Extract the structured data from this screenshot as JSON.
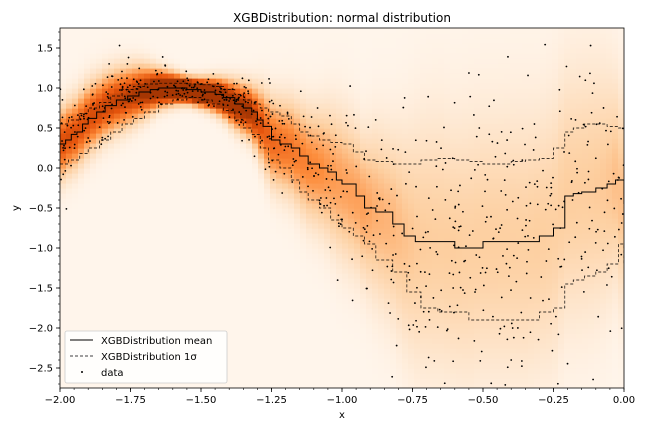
{
  "chart_data": {
    "type": "line",
    "title": "XGBDistribution: normal distribution",
    "xlabel": "x",
    "ylabel": "y",
    "xlim": [
      -2.0,
      0.0
    ],
    "ylim": [
      -2.75,
      1.75
    ],
    "xticks": [
      -2.0,
      -1.75,
      -1.5,
      -1.25,
      -1.0,
      -0.75,
      -0.5,
      -0.25,
      0.0
    ],
    "xtick_labels": [
      "−2.00",
      "−1.75",
      "−1.50",
      "−1.25",
      "−1.00",
      "−0.75",
      "−0.50",
      "−0.25",
      "0.00"
    ],
    "yticks": [
      -2.5,
      -2.0,
      -1.5,
      -1.0,
      -0.5,
      0.0,
      0.5,
      1.0,
      1.5
    ],
    "ytick_labels": [
      "−2.5",
      "−2.0",
      "−1.5",
      "−1.0",
      "−0.5",
      "0.0",
      "0.5",
      "1.0",
      "1.5"
    ],
    "legend_position": "lower-left",
    "background": "density heatmap (Oranges colormap)",
    "series": [
      {
        "name": "XGBDistribution mean",
        "style": "solid",
        "color": "#000000",
        "x": [
          -2.0,
          -1.98,
          -1.96,
          -1.94,
          -1.92,
          -1.9,
          -1.87,
          -1.84,
          -1.8,
          -1.76,
          -1.72,
          -1.68,
          -1.65,
          -1.6,
          -1.55,
          -1.5,
          -1.45,
          -1.42,
          -1.38,
          -1.35,
          -1.32,
          -1.3,
          -1.28,
          -1.25,
          -1.22,
          -1.18,
          -1.15,
          -1.12,
          -1.08,
          -1.05,
          -1.02,
          -1.0,
          -0.95,
          -0.92,
          -0.88,
          -0.82,
          -0.78,
          -0.74,
          -0.7,
          -0.65,
          -0.6,
          -0.55,
          -0.5,
          -0.45,
          -0.4,
          -0.35,
          -0.3,
          -0.25,
          -0.21,
          -0.18,
          -0.15,
          -0.1,
          -0.06,
          -0.03,
          0.0
        ],
        "y": [
          0.3,
          0.35,
          0.42,
          0.45,
          0.55,
          0.62,
          0.7,
          0.78,
          0.85,
          0.9,
          0.95,
          0.98,
          1.0,
          1.0,
          0.98,
          0.95,
          0.92,
          0.88,
          0.8,
          0.75,
          0.7,
          0.6,
          0.52,
          0.35,
          0.3,
          0.25,
          0.15,
          0.05,
          0.0,
          -0.05,
          -0.15,
          -0.2,
          -0.35,
          -0.5,
          -0.55,
          -0.7,
          -0.85,
          -0.92,
          -0.92,
          -0.92,
          -1.0,
          -1.0,
          -0.92,
          -0.92,
          -0.92,
          -0.92,
          -0.85,
          -0.75,
          -0.35,
          -0.32,
          -0.3,
          -0.25,
          -0.2,
          -0.15,
          -0.45
        ]
      },
      {
        "name": "XGBDistribution 1σ",
        "style": "dashed",
        "color": "#000000",
        "x": [
          -2.0,
          -1.97,
          -1.93,
          -1.9,
          -1.86,
          -1.82,
          -1.78,
          -1.74,
          -1.7,
          -1.65,
          -1.6,
          -1.55,
          -1.5,
          -1.46,
          -1.42,
          -1.38,
          -1.35,
          -1.32,
          -1.29,
          -1.26,
          -1.22,
          -1.18,
          -1.15,
          -1.12,
          -1.08,
          -1.04,
          -1.0,
          -0.96,
          -0.92,
          -0.88,
          -0.82,
          -0.77,
          -0.72,
          -0.66,
          -0.6,
          -0.55,
          -0.5,
          -0.45,
          -0.4,
          -0.35,
          -0.3,
          -0.25,
          -0.21,
          -0.18,
          -0.14,
          -0.1,
          -0.06,
          -0.02,
          0.0
        ],
        "y_upper": [
          0.55,
          0.6,
          0.68,
          0.75,
          0.82,
          0.9,
          0.98,
          1.02,
          1.05,
          1.06,
          1.06,
          1.05,
          1.04,
          1.02,
          0.98,
          0.92,
          0.85,
          0.8,
          0.75,
          0.7,
          0.65,
          0.55,
          0.45,
          0.4,
          0.35,
          0.32,
          0.3,
          0.2,
          0.1,
          0.08,
          0.05,
          0.05,
          0.1,
          0.12,
          0.1,
          0.08,
          0.05,
          0.05,
          0.08,
          0.1,
          0.12,
          0.25,
          0.45,
          0.5,
          0.55,
          0.55,
          0.52,
          0.5,
          0.45
        ],
        "y_lower": [
          0.05,
          0.1,
          0.18,
          0.25,
          0.35,
          0.45,
          0.55,
          0.62,
          0.7,
          0.8,
          0.85,
          0.88,
          0.85,
          0.8,
          0.72,
          0.6,
          0.5,
          0.42,
          0.25,
          0.1,
          0.0,
          -0.15,
          -0.3,
          -0.4,
          -0.5,
          -0.65,
          -0.75,
          -0.85,
          -0.95,
          -1.15,
          -1.3,
          -1.55,
          -1.75,
          -1.8,
          -1.8,
          -1.9,
          -1.9,
          -1.9,
          -1.9,
          -1.9,
          -1.8,
          -1.75,
          -1.45,
          -1.4,
          -1.35,
          -1.3,
          -1.2,
          -0.95,
          -1.2
        ]
      },
      {
        "name": "data",
        "style": "points",
        "color": "#000000",
        "n_points": 800,
        "description": "scatter of noisy sine samples"
      }
    ]
  }
}
